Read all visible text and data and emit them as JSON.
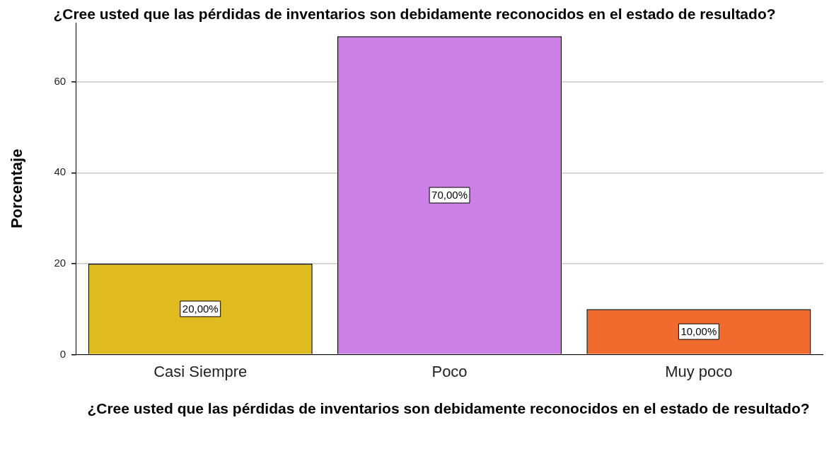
{
  "chart_data": {
    "type": "bar",
    "title": "¿Cree usted que las pérdidas de inventarios son debidamente reconocidos en el estado de resultado?",
    "xlabel": "¿Cree usted que las pérdidas de inventarios son debidamente reconocidos en el estado de resultado?",
    "ylabel": "Porcentaje",
    "categories": [
      "Casi Siempre",
      "Poco",
      "Muy poco"
    ],
    "values": [
      20,
      70,
      10
    ],
    "colors": [
      "#e0bb1f",
      "#cc80e6",
      "#f26b2e"
    ],
    "value_labels": [
      "20,00%",
      "70,00%",
      "10,00%"
    ],
    "ylim": [
      0,
      73
    ],
    "yticks": [
      0,
      20,
      40,
      60
    ],
    "grid": "y"
  }
}
